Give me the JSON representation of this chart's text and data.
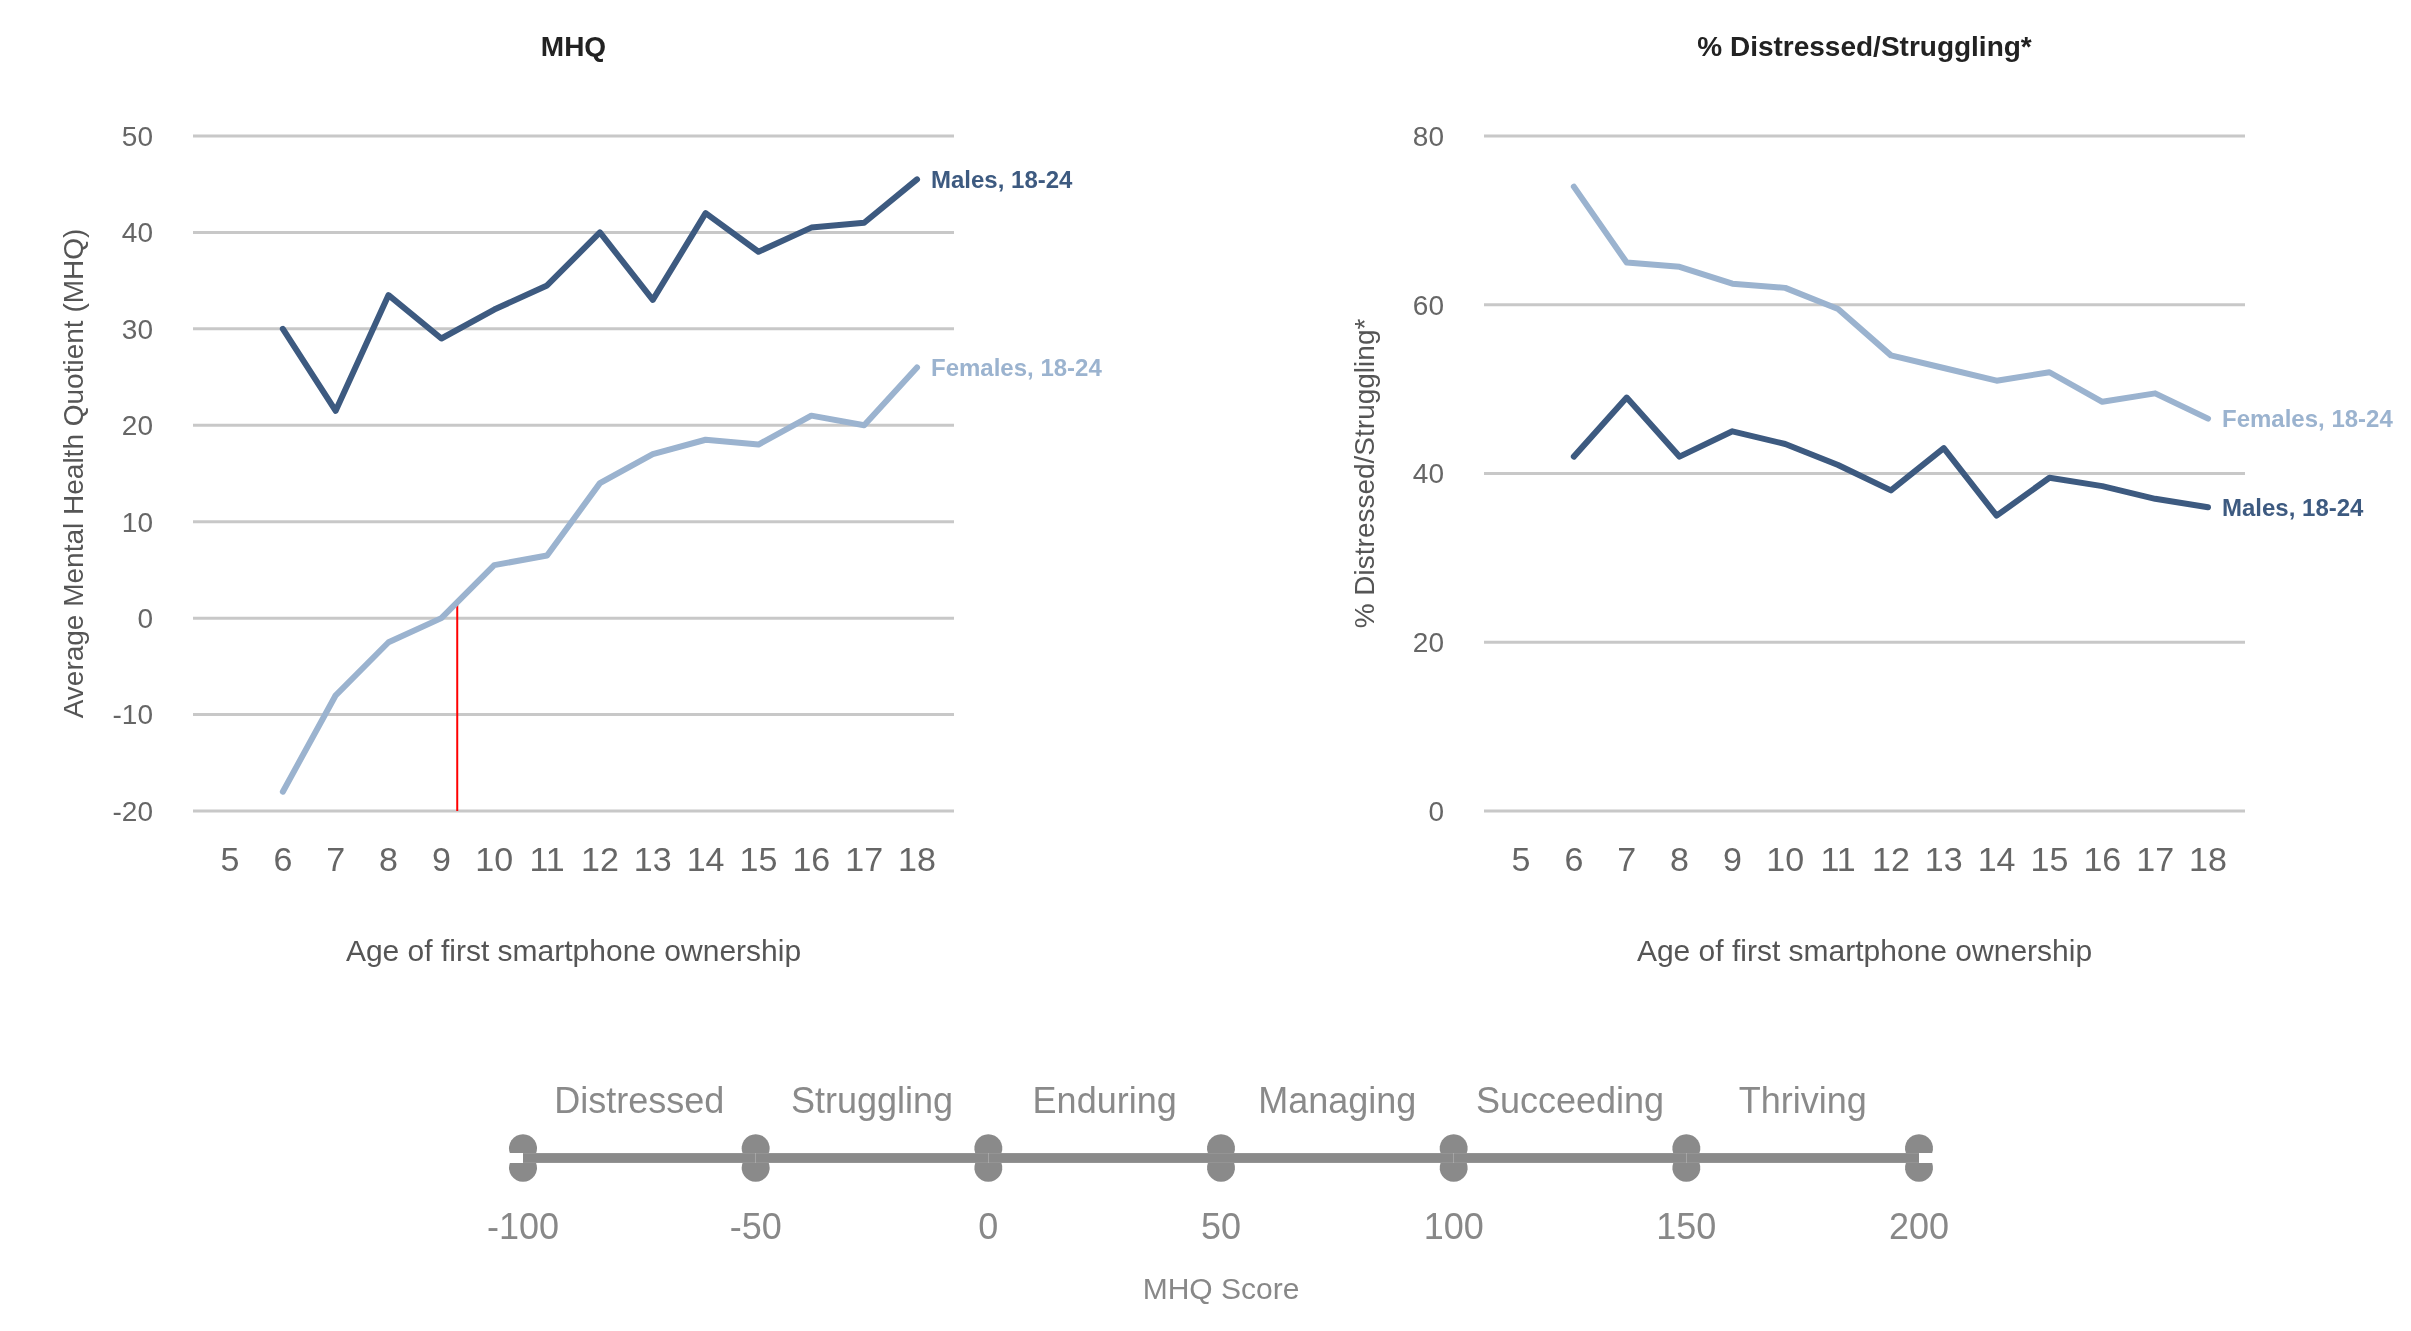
{
  "chart_data": [
    {
      "type": "line",
      "title": "MHQ",
      "xlabel": "Age of first smartphone ownership",
      "ylabel": "Average Mental Health Quotient (MHQ)",
      "x": [
        6,
        7,
        8,
        9,
        10,
        11,
        12,
        13,
        14,
        15,
        16,
        17,
        18
      ],
      "xlim": [
        4.3,
        18.7
      ],
      "xticks": [
        5,
        6,
        7,
        8,
        9,
        10,
        11,
        12,
        13,
        14,
        15,
        16,
        17,
        18
      ],
      "ylim": [
        -20,
        50
      ],
      "yticks": [
        -20,
        -10,
        0,
        10,
        20,
        30,
        40,
        50
      ],
      "grid": "y",
      "series": [
        {
          "name": "Males, 18-24",
          "color": "#3d5a80",
          "values": [
            30,
            21.5,
            33.5,
            29,
            32,
            34.5,
            40,
            33,
            42,
            38,
            40.5,
            41,
            45.5
          ]
        },
        {
          "name": "Females, 18-24",
          "color": "#9bb3cf",
          "values": [
            -18,
            -8,
            -2.5,
            0,
            5.5,
            6.5,
            14,
            17,
            18.5,
            18,
            21,
            20,
            26
          ]
        }
      ],
      "ref_lines": [
        {
          "axis": "x",
          "value": 9.3,
          "color": "#ff0000"
        }
      ]
    },
    {
      "type": "line",
      "title": "% Distressed/Struggling*",
      "xlabel": "Age of first smartphone ownership",
      "ylabel": "% Distressed/Struggling*",
      "x": [
        6,
        7,
        8,
        9,
        10,
        11,
        12,
        13,
        14,
        15,
        16,
        17,
        18
      ],
      "xlim": [
        4.3,
        18.7
      ],
      "xticks": [
        5,
        6,
        7,
        8,
        9,
        10,
        11,
        12,
        13,
        14,
        15,
        16,
        17,
        18
      ],
      "ylim": [
        0,
        80
      ],
      "yticks": [
        0,
        20,
        40,
        60,
        80
      ],
      "grid": "y",
      "series": [
        {
          "name": "Females, 18-24",
          "color": "#9bb3cf",
          "values": [
            74,
            65,
            64.5,
            62.5,
            62,
            59.5,
            54,
            52.5,
            51,
            52,
            48.5,
            49.5,
            46.5
          ]
        },
        {
          "name": "Males, 18-24",
          "color": "#3d5a80",
          "values": [
            42,
            49,
            42,
            45,
            43.5,
            41,
            38,
            43,
            35,
            39.5,
            38.5,
            37,
            36
          ]
        }
      ]
    },
    {
      "type": "bar",
      "orientation": "horizontal",
      "stacked": true,
      "xlabel": "MHQ Score",
      "categories": [
        null
      ],
      "xlim": [
        -100,
        200
      ],
      "xticks": [
        -100,
        -50,
        0,
        50,
        100,
        150,
        200
      ],
      "tick_labels": "x",
      "series": [
        {
          "name": "Struggling",
          "color": "#8a8a8a",
          "values": [
            -50
          ]
        },
        {
          "name": "Distressed",
          "color": "#8a8a8a",
          "values": [
            -50
          ]
        },
        {
          "name": "Enduring",
          "color": "#8a8a8a",
          "values": [
            50
          ]
        },
        {
          "name": "Managing",
          "color": "#8a8a8a",
          "values": [
            50
          ]
        },
        {
          "name": "Succeeding",
          "color": "#8a8a8a",
          "values": [
            50
          ]
        },
        {
          "name": "Thriving",
          "color": "#8a8a8a",
          "values": [
            50
          ]
        }
      ]
    }
  ]
}
